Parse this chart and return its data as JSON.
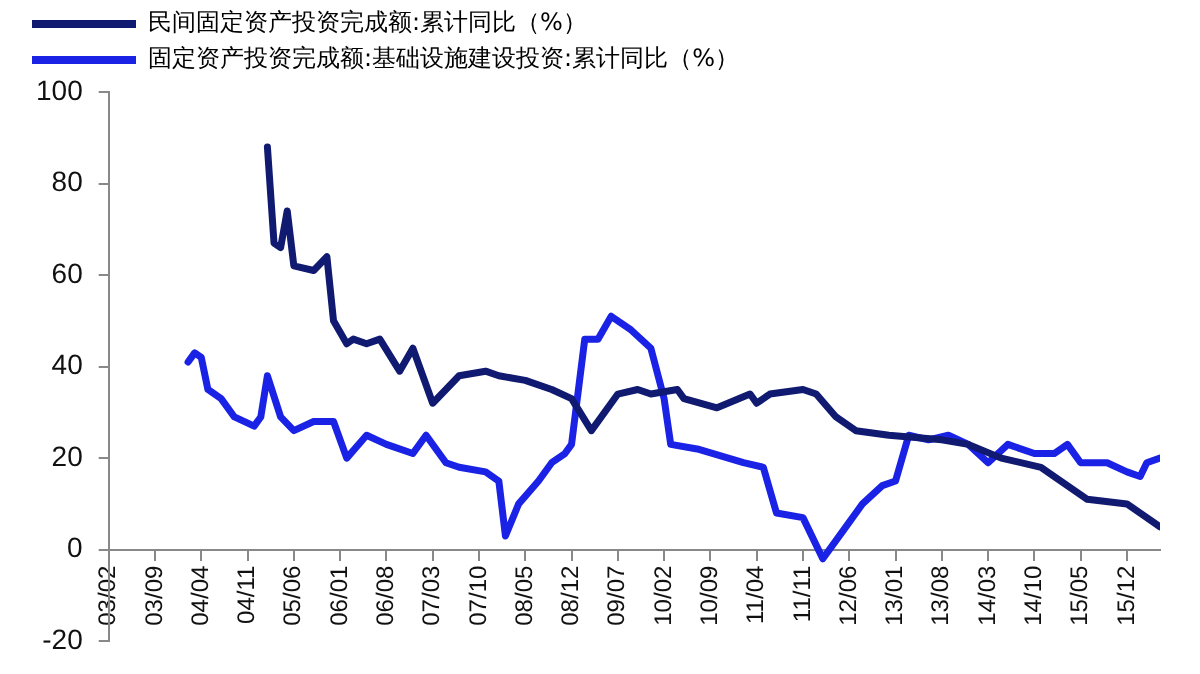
{
  "chart_data": {
    "type": "line",
    "legend": "top left",
    "grid": false,
    "marker": "none",
    "line_style": "solid",
    "ylim": [
      -20,
      100
    ],
    "yticks": [
      -20,
      0,
      20,
      40,
      60,
      80,
      100
    ],
    "xlim": [
      "2003-02",
      "2016-05"
    ],
    "xticks": [
      {
        "value": "2003-02",
        "label": "03/02"
      },
      {
        "value": "2003-09",
        "label": "03/09"
      },
      {
        "value": "2004-04",
        "label": "04/04"
      },
      {
        "value": "2004-11",
        "label": "04/11"
      },
      {
        "value": "2005-06",
        "label": "05/06"
      },
      {
        "value": "2006-01",
        "label": "06/01"
      },
      {
        "value": "2006-08",
        "label": "06/08"
      },
      {
        "value": "2007-03",
        "label": "07/03"
      },
      {
        "value": "2007-10",
        "label": "07/10"
      },
      {
        "value": "2008-05",
        "label": "08/05"
      },
      {
        "value": "2008-12",
        "label": "08/12"
      },
      {
        "value": "2009-07",
        "label": "09/07"
      },
      {
        "value": "2010-02",
        "label": "10/02"
      },
      {
        "value": "2010-09",
        "label": "10/09"
      },
      {
        "value": "2011-04",
        "label": "11/04"
      },
      {
        "value": "2011-11",
        "label": "11/11"
      },
      {
        "value": "2012-06",
        "label": "12/06"
      },
      {
        "value": "2013-01",
        "label": "13/01"
      },
      {
        "value": "2013-08",
        "label": "13/08"
      },
      {
        "value": "2014-03",
        "label": "14/03"
      },
      {
        "value": "2014-10",
        "label": "14/10"
      },
      {
        "value": "2015-05",
        "label": "15/05"
      },
      {
        "value": "2015-12",
        "label": "15/12"
      }
    ],
    "series": [
      {
        "name": "民间固定资产投资完成额:累计同比（%）",
        "color": "#101a70",
        "x": [
          "2005-02",
          "2005-03",
          "2005-04",
          "2005-05",
          "2005-06",
          "2005-09",
          "2005-11",
          "2005-12",
          "2006-02",
          "2006-03",
          "2006-05",
          "2006-07",
          "2006-10",
          "2006-12",
          "2007-03",
          "2007-07",
          "2007-11",
          "2008-01",
          "2008-05",
          "2008-09",
          "2008-12",
          "2009-03",
          "2009-07",
          "2009-10",
          "2009-12",
          "2010-04",
          "2010-05",
          "2010-10",
          "2011-03",
          "2011-04",
          "2011-06",
          "2011-11",
          "2012-01",
          "2012-04",
          "2012-07",
          "2012-12",
          "2013-08",
          "2013-12",
          "2014-05",
          "2014-11",
          "2015-02",
          "2015-06",
          "2015-12",
          "2016-03",
          "2016-05"
        ],
        "values": [
          88,
          67,
          66,
          74,
          62,
          61,
          64,
          50,
          45,
          46,
          45,
          46,
          39,
          44,
          32,
          38,
          39,
          38,
          37,
          35,
          33,
          26,
          34,
          35,
          34,
          35,
          33,
          31,
          34,
          32,
          34,
          35,
          34,
          29,
          26,
          25,
          24,
          23,
          20,
          18,
          15,
          11,
          10,
          7,
          5
        ]
      },
      {
        "name": "固定资产投资完成额:基础设施建设投资:累计同比（%）",
        "color": "#1a22e6",
        "x": [
          "2004-02",
          "2004-03",
          "2004-04",
          "2004-05",
          "2004-07",
          "2004-09",
          "2004-12",
          "2005-01",
          "2005-02",
          "2005-04",
          "2005-06",
          "2005-09",
          "2005-12",
          "2006-02",
          "2006-05",
          "2006-08",
          "2006-12",
          "2007-02",
          "2007-05",
          "2007-07",
          "2007-11",
          "2008-01",
          "2008-02",
          "2008-04",
          "2008-07",
          "2008-09",
          "2008-11",
          "2008-12",
          "2009-02",
          "2009-04",
          "2009-06",
          "2009-09",
          "2009-12",
          "2010-02",
          "2010-03",
          "2010-07",
          "2011-02",
          "2011-05",
          "2011-07",
          "2011-11",
          "2012-02",
          "2012-05",
          "2012-08",
          "2012-11",
          "2013-01",
          "2013-03",
          "2013-06",
          "2013-09",
          "2013-12",
          "2014-03",
          "2014-06",
          "2014-10",
          "2015-01",
          "2015-03",
          "2015-05",
          "2015-09",
          "2015-12",
          "2016-02",
          "2016-03",
          "2016-05"
        ],
        "values": [
          41,
          43,
          42,
          35,
          33,
          29,
          27,
          29,
          38,
          29,
          26,
          28,
          28,
          20,
          25,
          23,
          21,
          25,
          19,
          18,
          17,
          15,
          3,
          10,
          15,
          19,
          21,
          23,
          46,
          46,
          51,
          48,
          44,
          33,
          23,
          22,
          19,
          18,
          8,
          7,
          -2,
          4,
          10,
          14,
          15,
          25,
          24,
          25,
          23,
          19,
          23,
          21,
          21,
          23,
          19,
          19,
          17,
          16,
          19,
          20
        ]
      }
    ]
  }
}
